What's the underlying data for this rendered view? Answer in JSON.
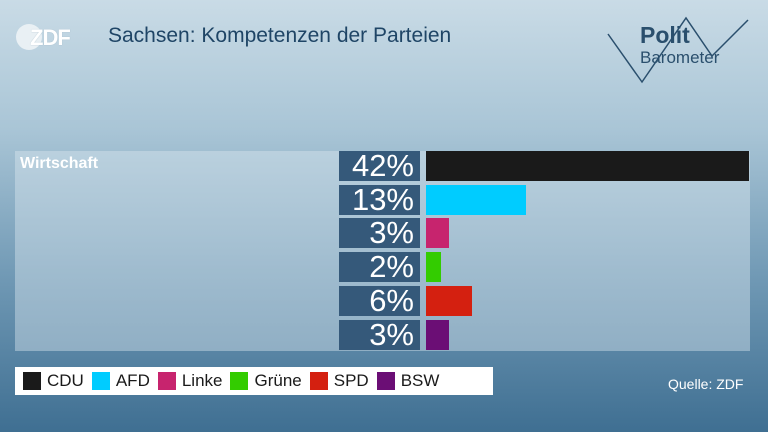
{
  "header": {
    "logo_text": "ZDF",
    "title": "Sachsen: Kompetenzen der Parteien",
    "brand_line1": "Polit",
    "brand_line2": "Barometer"
  },
  "source": "Quelle: ZDF",
  "chart_data": {
    "type": "bar",
    "orientation": "horizontal",
    "title": "Sachsen: Kompetenzen der Parteien",
    "category": "Wirtschaft",
    "categories": [
      "CDU",
      "AFD",
      "Linke",
      "Grüne",
      "SPD",
      "BSW"
    ],
    "values": [
      42,
      13,
      3,
      2,
      6,
      3
    ],
    "value_labels": [
      "42%",
      "13%",
      "3%",
      "2%",
      "6%",
      "3%"
    ],
    "colors": [
      "#1a1a1a",
      "#00ccff",
      "#c7246e",
      "#33cc00",
      "#d42010",
      "#6b0e75"
    ],
    "xlim": [
      0,
      42
    ],
    "legend_placement": "bottom-left",
    "grid": false
  }
}
